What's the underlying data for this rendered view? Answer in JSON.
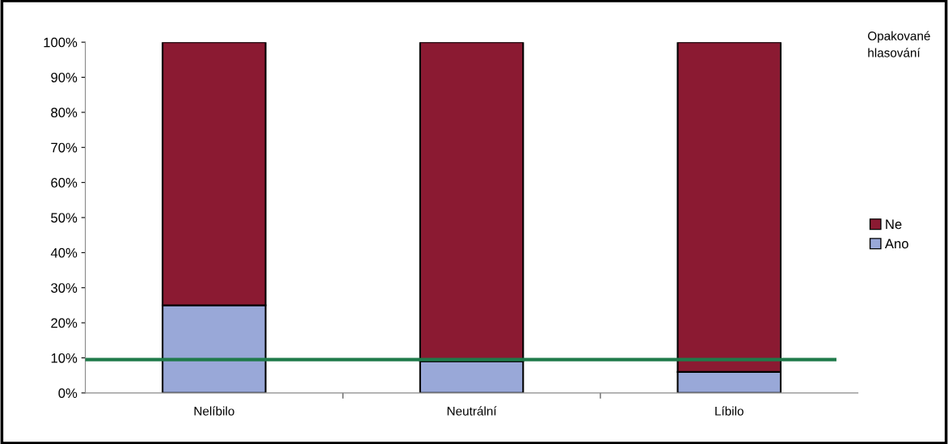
{
  "chart_data": {
    "type": "bar",
    "stacked": true,
    "categories": [
      "Nelíbilo",
      "Neutrální",
      "Líbilo"
    ],
    "series": [
      {
        "name": "Ano",
        "color": "#99a8d8",
        "values": [
          25,
          9,
          6
        ]
      },
      {
        "name": "Ne",
        "color": "#8b1a32",
        "values": [
          75,
          91,
          94
        ]
      }
    ],
    "ylim": [
      0,
      100
    ],
    "yticks": [
      {
        "value": 0,
        "label": "0%"
      },
      {
        "value": 10,
        "label": "10%"
      },
      {
        "value": 20,
        "label": "20%"
      },
      {
        "value": 30,
        "label": "30%"
      },
      {
        "value": 40,
        "label": "40%"
      },
      {
        "value": 50,
        "label": "50%"
      },
      {
        "value": 60,
        "label": "60%"
      },
      {
        "value": 70,
        "label": "70%"
      },
      {
        "value": 80,
        "label": "80%"
      },
      {
        "value": 90,
        "label": "90%"
      },
      {
        "value": 100,
        "label": "100%"
      }
    ],
    "ref_lines": [
      {
        "axis": "y",
        "value": 9.5,
        "color": "#1f7a4a"
      }
    ],
    "legend": "right",
    "legend_title": "Opakované hlasování",
    "grid": false
  }
}
